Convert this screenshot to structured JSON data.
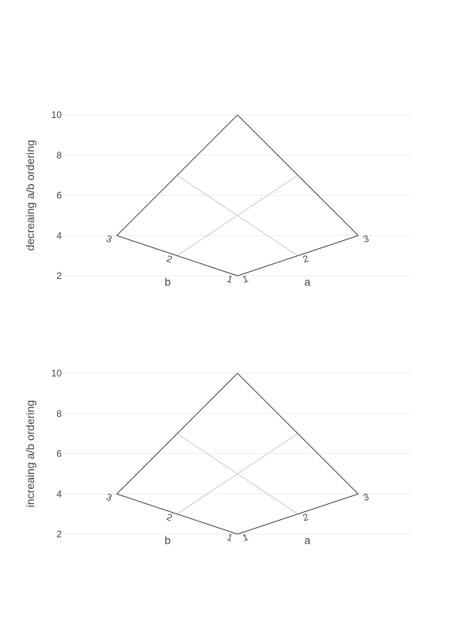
{
  "chart_data": [
    {
      "type": "carpet",
      "ylabel": "decreaing a/b ordering",
      "yaxis": {
        "range": [
          2,
          10
        ],
        "ticks": [
          "2",
          "4",
          "6",
          "8",
          "10"
        ],
        "grid": true
      },
      "a_axis": {
        "title": "a",
        "values": [
          1,
          2,
          3
        ],
        "tick_labels": [
          "1",
          "2",
          "3"
        ]
      },
      "b_axis": {
        "title": "b",
        "values": [
          1,
          2,
          3
        ],
        "tick_labels": [
          "1",
          "2",
          "3"
        ]
      },
      "x": [
        [
          0,
          1,
          2
        ],
        [
          -1,
          0,
          1
        ],
        [
          -2,
          -1,
          0
        ]
      ],
      "y": [
        [
          2,
          3,
          4
        ],
        [
          3,
          5,
          7
        ],
        [
          4,
          7,
          10
        ]
      ]
    },
    {
      "type": "carpet",
      "ylabel": "increaing a/b ordering",
      "yaxis": {
        "range": [
          2,
          10
        ],
        "ticks": [
          "2",
          "4",
          "6",
          "8",
          "10"
        ],
        "grid": true
      },
      "a_axis": {
        "title": "a",
        "values": [
          1,
          2,
          3
        ],
        "tick_labels": [
          "1",
          "2",
          "3"
        ]
      },
      "b_axis": {
        "title": "b",
        "values": [
          1,
          2,
          3
        ],
        "tick_labels": [
          "1",
          "2",
          "3"
        ]
      },
      "x": [
        [
          0,
          1,
          2
        ],
        [
          -1,
          0,
          1
        ],
        [
          -2,
          -1,
          0
        ]
      ],
      "y": [
        [
          2,
          3,
          4
        ],
        [
          3,
          5,
          7
        ],
        [
          4,
          7,
          10
        ]
      ]
    }
  ]
}
